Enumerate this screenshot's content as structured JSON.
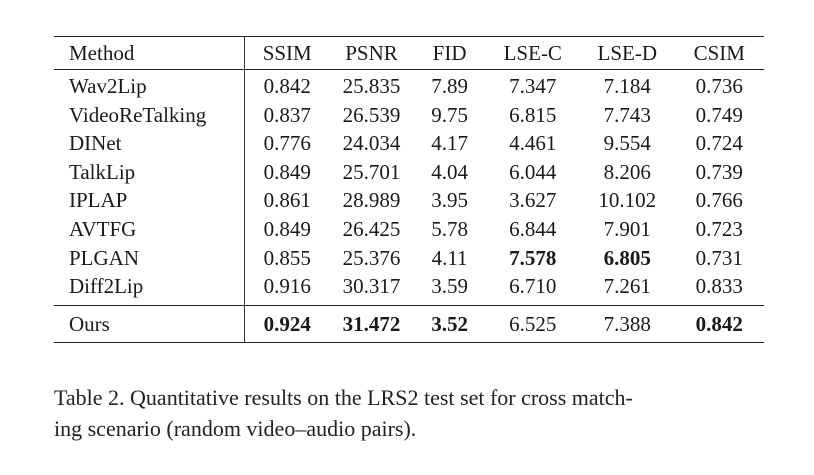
{
  "table": {
    "headers": [
      "Method",
      "SSIM",
      "PSNR",
      "FID",
      "LSE-C",
      "LSE-D",
      "CSIM"
    ],
    "rows": [
      {
        "method": "Wav2Lip",
        "ssim": "0.842",
        "psnr": "25.835",
        "fid": "7.89",
        "lse_c": "7.347",
        "lse_d": "7.184",
        "csim": "0.736"
      },
      {
        "method": "VideoReTalking",
        "ssim": "0.837",
        "psnr": "26.539",
        "fid": "9.75",
        "lse_c": "6.815",
        "lse_d": "7.743",
        "csim": "0.749"
      },
      {
        "method": "DINet",
        "ssim": "0.776",
        "psnr": "24.034",
        "fid": "4.17",
        "lse_c": "4.461",
        "lse_d": "9.554",
        "csim": "0.724"
      },
      {
        "method": "TalkLip",
        "ssim": "0.849",
        "psnr": "25.701",
        "fid": "4.04",
        "lse_c": "6.044",
        "lse_d": "8.206",
        "csim": "0.739"
      },
      {
        "method": "IPLAP",
        "ssim": "0.861",
        "psnr": "28.989",
        "fid": "3.95",
        "lse_c": "3.627",
        "lse_d": "10.102",
        "csim": "0.766"
      },
      {
        "method": "AVTFG",
        "ssim": "0.849",
        "psnr": "26.425",
        "fid": "5.78",
        "lse_c": "6.844",
        "lse_d": "7.901",
        "csim": "0.723"
      },
      {
        "method": "PLGAN",
        "ssim": "0.855",
        "psnr": "25.376",
        "fid": "4.11",
        "lse_c": "7.578",
        "lse_d": "6.805",
        "csim": "0.731"
      },
      {
        "method": "Diff2Lip",
        "ssim": "0.916",
        "psnr": "30.317",
        "fid": "3.59",
        "lse_c": "6.710",
        "lse_d": "7.261",
        "csim": "0.833"
      }
    ],
    "ours": {
      "method": "Ours",
      "ssim": "0.924",
      "psnr": "31.472",
      "fid": "3.52",
      "lse_c": "6.525",
      "lse_d": "7.388",
      "csim": "0.842"
    },
    "bold_cells": [
      {
        "row": "PLGAN",
        "column": "LSE-C"
      },
      {
        "row": "PLGAN",
        "column": "LSE-D"
      },
      {
        "row": "Ours",
        "column": "SSIM"
      },
      {
        "row": "Ours",
        "column": "PSNR"
      },
      {
        "row": "Ours",
        "column": "FID"
      },
      {
        "row": "Ours",
        "column": "CSIM"
      }
    ]
  },
  "caption": {
    "line1": "Table 2. Quantitative results on the LRS2 test set for cross match-",
    "line2": "ing scenario (random video–audio pairs)."
  }
}
